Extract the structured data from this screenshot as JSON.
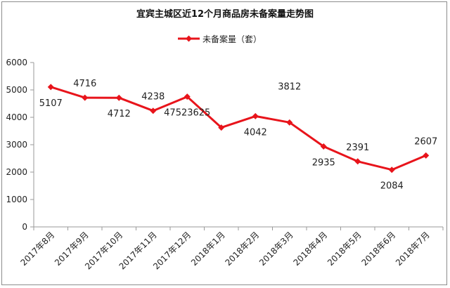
{
  "chart_data": {
    "type": "line",
    "title": "宜宾主城区近12个月商品房未备案量走势图",
    "legend": {
      "position": "top",
      "label": "未备案量（套）"
    },
    "colors": {
      "series": "#e8141b",
      "axis": "#9a9a9a"
    },
    "grid": false,
    "ylim": [
      0,
      6000
    ],
    "yticks": [
      "0",
      "1000",
      "2000",
      "3000",
      "4000",
      "5000",
      "6000"
    ],
    "categories": [
      "2017年8月",
      "2017年9月",
      "2017年10月",
      "2017年11月",
      "2017年12月",
      "2018年1月",
      "2018年2月",
      "2018年3月",
      "2018年4月",
      "2018年5月",
      "2018年6月",
      "2018年7月"
    ],
    "series": [
      {
        "name": "未备案量（套）",
        "values": [
          5107,
          4716,
          4712,
          4238,
          4752,
          3625,
          4042,
          3812,
          2935,
          2391,
          2084,
          2607
        ]
      }
    ],
    "data_labels": [
      {
        "text": "5107",
        "placement": "below"
      },
      {
        "text": "4716",
        "placement": "above"
      },
      {
        "text": "4712",
        "placement": "below"
      },
      {
        "text": "4238",
        "placement": "above"
      },
      {
        "text": "47523625",
        "placement": "below"
      },
      {
        "text": "",
        "placement": "none"
      },
      {
        "text": "4042",
        "placement": "below"
      },
      {
        "text": "3812",
        "placement": "above-far"
      },
      {
        "text": "2935",
        "placement": "below"
      },
      {
        "text": "2391",
        "placement": "above"
      },
      {
        "text": "2084",
        "placement": "below"
      },
      {
        "text": "2607",
        "placement": "above"
      }
    ]
  }
}
